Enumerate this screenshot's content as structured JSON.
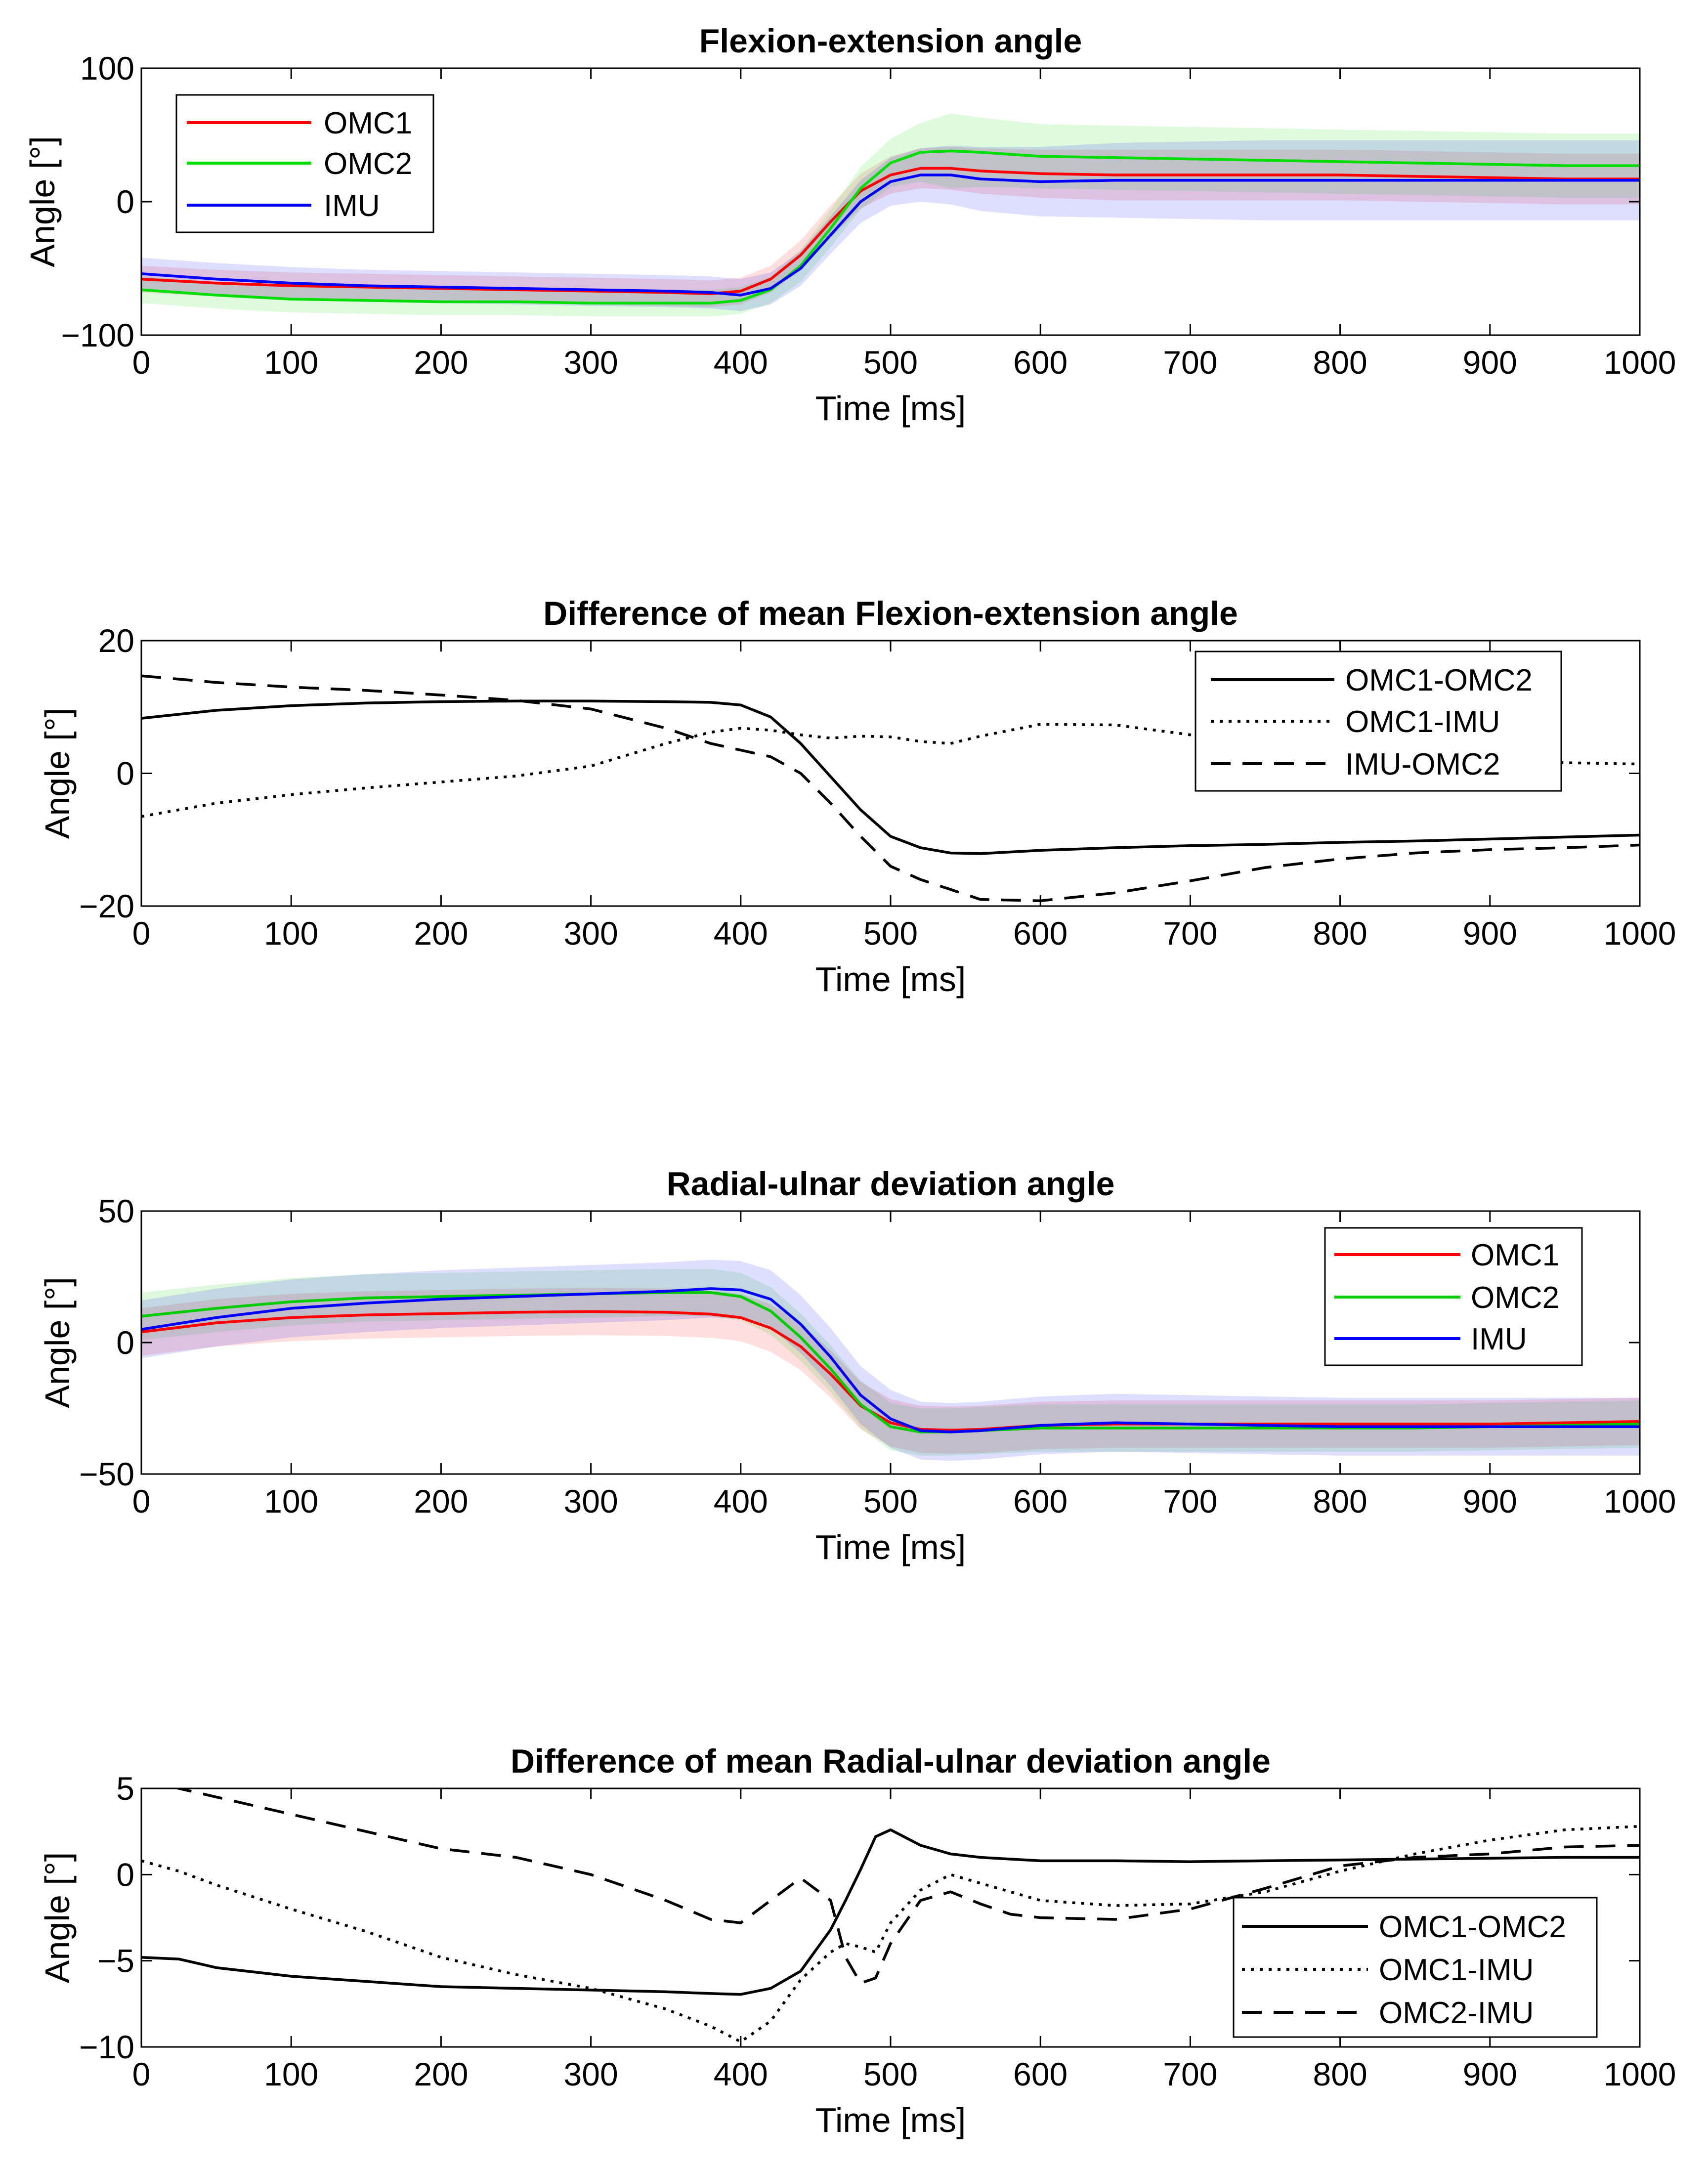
{
  "chart_data": [
    {
      "type": "line",
      "title": "Flexion-extension angle",
      "xlabel": "Time [ms]",
      "ylabel": "Angle [°]",
      "xlim": [
        0,
        1000
      ],
      "ylim": [
        -100,
        100
      ],
      "xticks": [
        0,
        100,
        200,
        300,
        400,
        500,
        600,
        700,
        800,
        900,
        1000
      ],
      "yticks": [
        -100,
        0,
        100
      ],
      "legend_position": "top-left",
      "shaded_bands": true,
      "x": [
        0,
        50,
        100,
        150,
        200,
        250,
        300,
        350,
        380,
        400,
        420,
        440,
        460,
        480,
        500,
        520,
        540,
        560,
        600,
        650,
        700,
        750,
        800,
        850,
        900,
        950,
        1000
      ],
      "series": [
        {
          "name": "OMC1",
          "color": "#ff0000",
          "style": "solid",
          "values": [
            -58,
            -61,
            -63,
            -64,
            -65,
            -66,
            -67,
            -68,
            -69,
            -67,
            -58,
            -40,
            -15,
            8,
            20,
            25,
            25,
            23,
            21,
            20,
            20,
            20,
            20,
            19,
            18,
            17,
            17
          ],
          "band": [
            10,
            10,
            10,
            10,
            10,
            10,
            10,
            10,
            10,
            10,
            10,
            11,
            12,
            13,
            14,
            15,
            16,
            17,
            18,
            19,
            19,
            19,
            19,
            19,
            19,
            19,
            19
          ]
        },
        {
          "name": "OMC2",
          "color": "#00dd00",
          "style": "solid",
          "values": [
            -66,
            -70,
            -73,
            -74,
            -75,
            -75,
            -76,
            -76,
            -76,
            -74,
            -66,
            -48,
            -20,
            10,
            29,
            37,
            38,
            37,
            34,
            33,
            32,
            31,
            30,
            29,
            28,
            27,
            27
          ],
          "band": [
            10,
            10,
            10,
            10,
            10,
            10,
            10,
            10,
            10,
            10,
            10,
            12,
            14,
            16,
            18,
            22,
            28,
            26,
            24,
            24,
            24,
            24,
            24,
            24,
            24,
            24,
            24
          ]
        },
        {
          "name": "IMU",
          "color": "#0000ff",
          "style": "solid",
          "values": [
            -54,
            -58,
            -61,
            -63,
            -64,
            -65,
            -66,
            -67,
            -68,
            -70,
            -65,
            -50,
            -25,
            0,
            15,
            20,
            20,
            17,
            15,
            16,
            16,
            16,
            16,
            16,
            16,
            16,
            16
          ],
          "band": [
            12,
            12,
            12,
            12,
            12,
            12,
            12,
            12,
            12,
            12,
            12,
            13,
            14,
            16,
            18,
            20,
            22,
            24,
            26,
            28,
            29,
            30,
            30,
            30,
            30,
            30,
            30
          ]
        }
      ]
    },
    {
      "type": "line",
      "title": "Difference of mean Flexion-extension angle",
      "xlabel": "Time [ms]",
      "ylabel": "Angle [°]",
      "xlim": [
        0,
        1000
      ],
      "ylim": [
        -20,
        20
      ],
      "xticks": [
        0,
        100,
        200,
        300,
        400,
        500,
        600,
        700,
        800,
        900,
        1000
      ],
      "yticks": [
        -20,
        0,
        20
      ],
      "legend_position": "top-right",
      "x": [
        0,
        50,
        100,
        150,
        200,
        250,
        300,
        350,
        380,
        400,
        420,
        440,
        460,
        480,
        500,
        520,
        540,
        560,
        600,
        650,
        700,
        750,
        800,
        850,
        900,
        950,
        1000
      ],
      "series": [
        {
          "name": "OMC1-OMC2",
          "color": "#000000",
          "style": "solid",
          "values": [
            8.3,
            9.5,
            10.2,
            10.6,
            10.8,
            10.9,
            10.9,
            10.8,
            10.7,
            10.3,
            8.5,
            4.5,
            -0.5,
            -5.5,
            -9.5,
            -11.2,
            -12,
            -12.1,
            -11.6,
            -11.2,
            -10.9,
            -10.7,
            -10.4,
            -10.2,
            -9.9,
            -9.6,
            -9.3
          ],
          "legend": "OMC1-OMC2"
        },
        {
          "name": "OMC1-IMU",
          "color": "#000000",
          "style": "dotted",
          "values": [
            -6.5,
            -4.5,
            -3.2,
            -2.2,
            -1.3,
            -0.4,
            1.1,
            4.5,
            6.2,
            6.8,
            6.5,
            5.8,
            5.3,
            5.6,
            5.5,
            4.8,
            4.5,
            5.6,
            7.4,
            7.3,
            5.8,
            4.2,
            3.1,
            2.4,
            1.9,
            1.6,
            1.4
          ]
        },
        {
          "name": "IMU-OMC2",
          "color": "#000000",
          "style": "dashed",
          "values": [
            14.7,
            13.7,
            13,
            12.5,
            11.8,
            11,
            9.7,
            6.8,
            4.5,
            3.5,
            2.5,
            0,
            -4.5,
            -9.5,
            -14,
            -16,
            -17.5,
            -19,
            -19.2,
            -18,
            -16.2,
            -14.2,
            -12.9,
            -12,
            -11.5,
            -11.2,
            -10.8
          ]
        }
      ]
    },
    {
      "type": "line",
      "title": "Radial-ulnar deviation angle",
      "xlabel": "Time [ms]",
      "ylabel": "Angle [°]",
      "xlim": [
        0,
        1000
      ],
      "ylim": [
        -50,
        50
      ],
      "xticks": [
        0,
        100,
        200,
        300,
        400,
        500,
        600,
        700,
        800,
        900,
        1000
      ],
      "yticks": [
        -50,
        0,
        50
      ],
      "legend_position": "top-right",
      "shaded_bands": true,
      "x": [
        0,
        50,
        100,
        150,
        200,
        250,
        300,
        350,
        380,
        400,
        420,
        440,
        460,
        480,
        500,
        520,
        540,
        560,
        600,
        650,
        700,
        750,
        800,
        850,
        900,
        950,
        1000
      ],
      "series": [
        {
          "name": "OMC1",
          "color": "#ff0000",
          "style": "solid",
          "values": [
            4,
            7.5,
            9.5,
            10.5,
            11,
            11.5,
            11.8,
            11.5,
            10.8,
            9.5,
            5.5,
            -1.5,
            -12,
            -24,
            -30.5,
            -33,
            -33.3,
            -33,
            -31.5,
            -31,
            -31,
            -31,
            -31,
            -31,
            -31,
            -30.5,
            -30
          ],
          "band": [
            9,
            9,
            9,
            9,
            9,
            9,
            9,
            9,
            9,
            9,
            9,
            9,
            9,
            9,
            9,
            9,
            9,
            9,
            9,
            9,
            9,
            9,
            9,
            9,
            9,
            9,
            9
          ]
        },
        {
          "name": "OMC2",
          "color": "#00cc00",
          "style": "solid",
          "values": [
            10,
            13,
            15.5,
            17,
            17.5,
            18,
            18.5,
            19,
            19,
            17.5,
            12,
            2,
            -10,
            -23.5,
            -32,
            -34,
            -34,
            -33.5,
            -32.5,
            -32.5,
            -32.5,
            -32.5,
            -32.5,
            -32.5,
            -32,
            -31.5,
            -31
          ],
          "band": [
            9,
            9,
            9,
            9,
            9,
            9,
            9,
            9,
            9,
            9,
            9,
            9,
            9,
            9,
            9,
            9,
            9,
            9,
            9,
            9,
            9,
            9,
            9,
            9,
            9,
            9,
            9
          ]
        },
        {
          "name": "IMU",
          "color": "#0000ff",
          "style": "solid",
          "values": [
            5,
            9.5,
            13,
            15,
            16.5,
            17.5,
            18.5,
            19.5,
            20.5,
            20,
            16.5,
            7,
            -5.5,
            -20,
            -29,
            -33.5,
            -34,
            -33.5,
            -31.5,
            -30.5,
            -31,
            -31.5,
            -32,
            -32,
            -32,
            -32,
            -32
          ],
          "band": [
            11,
            11,
            11,
            11,
            11,
            11,
            11,
            11,
            11,
            11,
            11,
            11,
            11,
            11,
            11,
            11,
            11,
            11,
            11,
            11,
            11,
            11,
            11,
            11,
            11,
            11,
            11
          ]
        }
      ]
    },
    {
      "type": "line",
      "title": "Difference of mean Radial-ulnar deviation angle",
      "xlabel": "Time [ms]",
      "ylabel": "Angle [°]",
      "xlim": [
        0,
        1000
      ],
      "ylim": [
        -10,
        5
      ],
      "xticks": [
        0,
        100,
        200,
        300,
        400,
        500,
        600,
        700,
        800,
        900,
        1000
      ],
      "yticks": [
        -10,
        -5,
        0,
        5
      ],
      "legend_position": "bottom-right",
      "x": [
        0,
        25,
        50,
        100,
        150,
        200,
        250,
        300,
        350,
        380,
        400,
        420,
        440,
        460,
        470,
        480,
        490,
        500,
        520,
        540,
        560,
        580,
        600,
        650,
        700,
        750,
        800,
        850,
        900,
        950,
        1000
      ],
      "series": [
        {
          "name": "OMC1-OMC2",
          "color": "#000000",
          "style": "solid",
          "values": [
            -4.8,
            -4.9,
            -5.4,
            -5.9,
            -6.2,
            -6.5,
            -6.6,
            -6.7,
            -6.8,
            -6.9,
            -6.95,
            -6.6,
            -5.6,
            -3.2,
            -1.5,
            0.3,
            2.2,
            2.6,
            1.7,
            1.2,
            1.0,
            0.9,
            0.8,
            0.8,
            0.75,
            0.8,
            0.85,
            0.9,
            0.95,
            1.0,
            1.0
          ]
        },
        {
          "name": "OMC1-IMU",
          "color": "#000000",
          "style": "dotted",
          "values": [
            0.8,
            0.2,
            -0.6,
            -2.0,
            -3.3,
            -4.8,
            -5.8,
            -6.6,
            -7.8,
            -8.8,
            -9.7,
            -8.5,
            -6.1,
            -4.5,
            -4.0,
            -4.2,
            -4.5,
            -2.8,
            -0.9,
            0.0,
            -0.5,
            -1.0,
            -1.5,
            -1.8,
            -1.7,
            -1.0,
            0.2,
            1.2,
            2.0,
            2.6,
            2.8
          ]
        },
        {
          "name": "OMC2-IMU",
          "color": "#000000",
          "style": "dashed",
          "values": [
            5.5,
            5.0,
            4.5,
            3.5,
            2.5,
            1.5,
            1.0,
            0.0,
            -1.5,
            -2.6,
            -2.8,
            -1.5,
            -0.2,
            -1.5,
            -4.8,
            -6.3,
            -6.0,
            -4.0,
            -1.5,
            -1.0,
            -1.7,
            -2.3,
            -2.5,
            -2.6,
            -2.0,
            -0.8,
            0.5,
            1.0,
            1.2,
            1.6,
            1.7
          ]
        }
      ]
    }
  ]
}
